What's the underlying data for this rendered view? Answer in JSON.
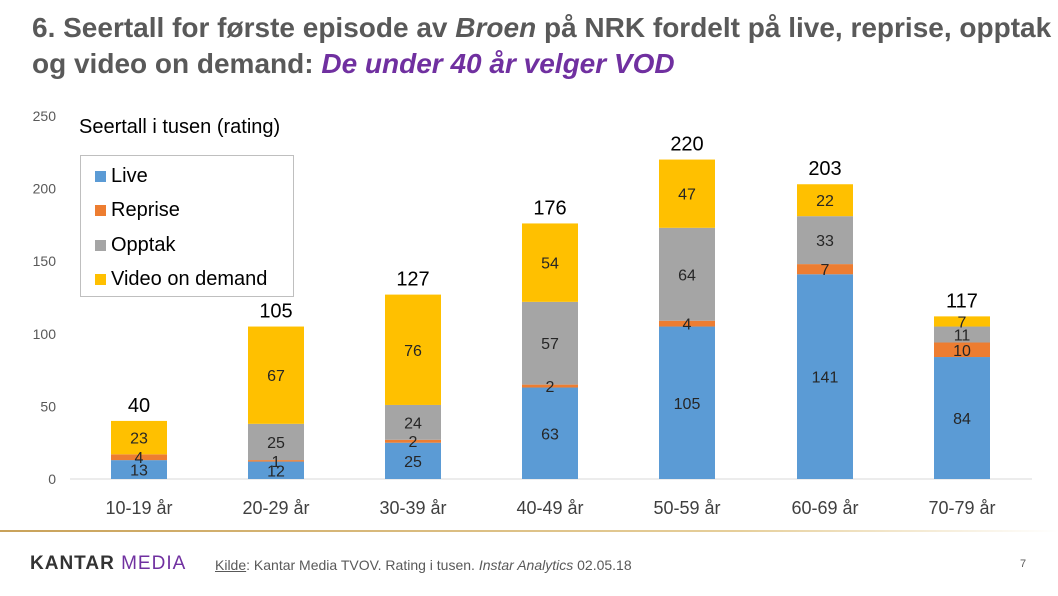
{
  "title": {
    "prefix": "6. Seertall for første episode av ",
    "italic": "Broen",
    "middle": " på NRK fordelt på live, reprise, opptak og video on demand: ",
    "highlight": "De under 40 år velger VOD"
  },
  "chart_data": {
    "type": "bar",
    "subtitle": "Seertall i tusen (rating)",
    "categories": [
      "10-19 år",
      "20-29 år",
      "30-39 år",
      "40-49 år",
      "50-59 år",
      "60-69 år",
      "70-79 år"
    ],
    "series": [
      {
        "name": "Live",
        "color": "#5b9bd5",
        "values": [
          13,
          12,
          25,
          63,
          105,
          141,
          84
        ]
      },
      {
        "name": "Reprise",
        "color": "#ed7d31",
        "values": [
          4,
          1,
          2,
          2,
          4,
          7,
          10
        ]
      },
      {
        "name": "Opptak",
        "color": "#a5a5a5",
        "values": [
          null,
          25,
          24,
          57,
          64,
          33,
          11
        ]
      },
      {
        "name": "Video on demand",
        "color": "#ffc000",
        "values": [
          23,
          67,
          76,
          54,
          47,
          22,
          7
        ]
      }
    ],
    "totals": [
      40,
      105,
      127,
      176,
      220,
      203,
      117
    ],
    "ylim": [
      0,
      250
    ],
    "yticks": [
      0,
      50,
      100,
      150,
      200,
      250
    ],
    "legend_position": "top-left",
    "grid": false
  },
  "footer": {
    "logo_main": "KANTAR ",
    "logo_accent": "MEDIA",
    "source_label": "Kilde",
    "source_text": ": Kantar Media TVOV. Rating i tusen. ",
    "source_italic": "Instar Analytics",
    "source_date": " 02.05.18",
    "page": "7"
  }
}
